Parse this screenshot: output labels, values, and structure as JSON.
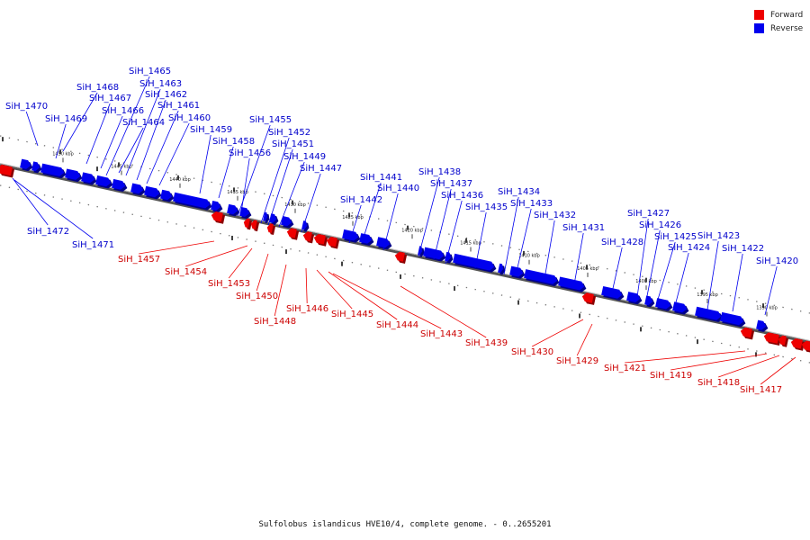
{
  "legend": {
    "forward_label": "Forward",
    "reverse_label": "Reverse",
    "forward_color": "#ee0000",
    "reverse_color": "#0000ee"
  },
  "caption": "Sulfolobus islandicus HVE10/4, complete genome. - 0..2655201",
  "scale_ticks": [
    "1450 kbp",
    "1445 kbp",
    "1440 kbp",
    "1435 kbp",
    "1430 kbp",
    "1425 kbp",
    "1420 kbp",
    "1415 kbp",
    "1410 kbp",
    "1405 kbp",
    "1400 kbp",
    "1395 kbp",
    "1390 kbp"
  ],
  "reverse_genes": [
    "SiH_1470",
    "SiH_1469",
    "SiH_1468",
    "SiH_1467",
    "SiH_1466",
    "SiH_1465",
    "SiH_1464",
    "SiH_1463",
    "SiH_1462",
    "SiH_1461",
    "SiH_1460",
    "SiH_1459",
    "SiH_1458",
    "SiH_1456",
    "SiH_1455",
    "SiH_1452",
    "SiH_1451",
    "SiH_1449",
    "SiH_1447",
    "SiH_1442",
    "SiH_1441",
    "SiH_1440",
    "SiH_1438",
    "SiH_1437",
    "SiH_1436",
    "SiH_1435",
    "SiH_1434",
    "SiH_1433",
    "SiH_1432",
    "SiH_1431",
    "SiH_1428",
    "SiH_1427",
    "SiH_1426",
    "SiH_1425",
    "SiH_1424",
    "SiH_1423",
    "SiH_1422",
    "SiH_1420",
    "SiH_1472",
    "SiH_1471"
  ],
  "forward_genes": [
    "SiH_1457",
    "SiH_1454",
    "SiH_1453",
    "SiH_1450",
    "SiH_1448",
    "SiH_1446",
    "SiH_1445",
    "SiH_1444",
    "SiH_1443",
    "SiH_1439",
    "SiH_1430",
    "SiH_1429",
    "SiH_1421",
    "SiH_1419",
    "SiH_1418",
    "SiH_1417"
  ]
}
